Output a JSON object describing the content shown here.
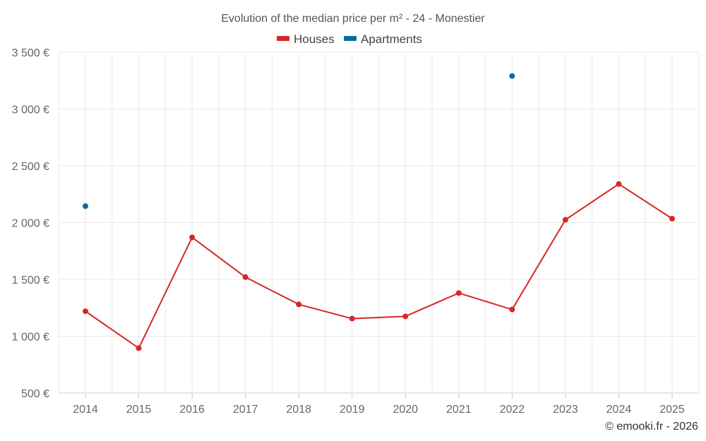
{
  "chart_data": {
    "type": "line",
    "title": "Evolution of the median price per m² - 24 - Monestier",
    "categories": [
      "2014",
      "2015",
      "2016",
      "2017",
      "2018",
      "2019",
      "2020",
      "2021",
      "2022",
      "2023",
      "2024",
      "2025"
    ],
    "series": [
      {
        "name": "Houses",
        "color": "#d62728",
        "values": [
          1220,
          895,
          1870,
          1520,
          1280,
          1155,
          1175,
          1380,
          1235,
          2025,
          2340,
          2035
        ]
      },
      {
        "name": "Apartments",
        "color": "#0b6aa2",
        "values": [
          2145,
          null,
          null,
          null,
          null,
          null,
          null,
          null,
          3290,
          null,
          null,
          null
        ]
      }
    ],
    "ylim": [
      500,
      3500
    ],
    "yticks": [
      500,
      1000,
      1500,
      2000,
      2500,
      3000,
      3500
    ],
    "ytick_labels": [
      "500 €",
      "1 000 €",
      "1 500 €",
      "2 000 €",
      "2 500 €",
      "3 000 €",
      "3 500 €"
    ],
    "legend_position": "top-center",
    "grid": true
  },
  "credit": "© emooki.fr - 2026"
}
